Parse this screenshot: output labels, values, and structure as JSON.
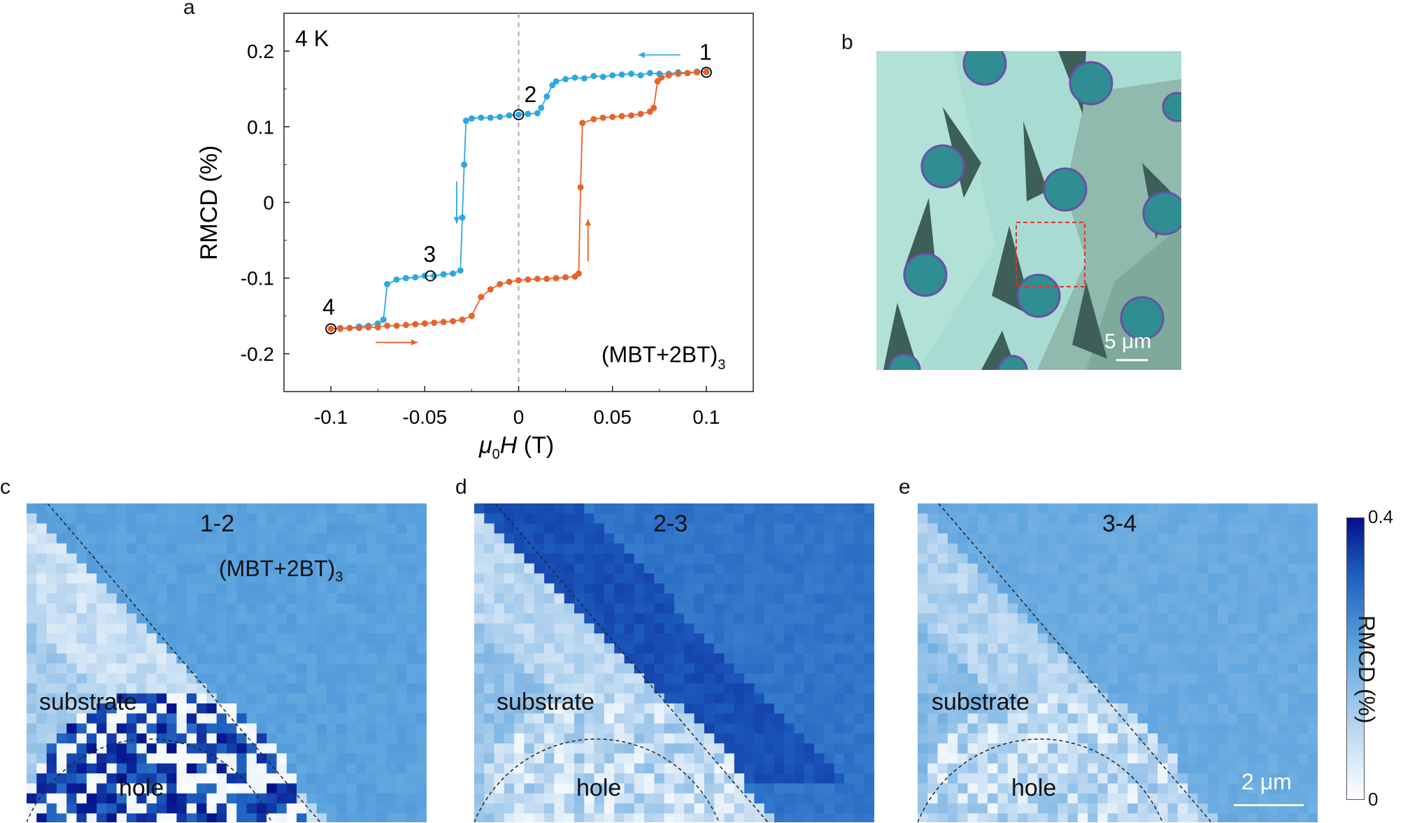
{
  "panel_labels": {
    "a": "a",
    "b": "b",
    "c": "c",
    "d": "d",
    "e": "e"
  },
  "panel_a": {
    "temperature": "4 K",
    "sample": "(MBT+2BT)",
    "sample_subscript": "3",
    "point_labels": [
      "1",
      "2",
      "3",
      "4"
    ],
    "colors": {
      "sweep_down": "#2ea7e0",
      "sweep_up": "#e8622a",
      "dashed_zero": "#aaaaaa"
    }
  },
  "chart_data": {
    "type": "scatter",
    "title": "",
    "xlabel_mu": "μ",
    "xlabel_sub": "0",
    "xlabel_rest": "H (T)",
    "ylabel": "RMCD (%)",
    "xlim": [
      -0.125,
      0.125
    ],
    "ylim": [
      -0.25,
      0.25
    ],
    "x_ticks": [
      "-0.1",
      "-0.05",
      "0",
      "0.05",
      "0.1"
    ],
    "y_ticks": [
      "0.2",
      "0.1",
      "0",
      "-0.1",
      "-0.2"
    ],
    "x_tick_values": [
      -0.1,
      -0.05,
      0,
      0.05,
      0.1
    ],
    "y_tick_values": [
      0.2,
      0.1,
      0,
      -0.1,
      -0.2
    ],
    "series": [
      {
        "color": "#2ea7e0",
        "points": [
          [
            0.1,
            0.172
          ],
          [
            0.095,
            0.173
          ],
          [
            0.09,
            0.171
          ],
          [
            0.085,
            0.172
          ],
          [
            0.08,
            0.17
          ],
          [
            0.075,
            0.17
          ],
          [
            0.07,
            0.171
          ],
          [
            0.065,
            0.168
          ],
          [
            0.06,
            0.17
          ],
          [
            0.055,
            0.169
          ],
          [
            0.05,
            0.168
          ],
          [
            0.045,
            0.166
          ],
          [
            0.04,
            0.167
          ],
          [
            0.035,
            0.164
          ],
          [
            0.03,
            0.165
          ],
          [
            0.025,
            0.163
          ],
          [
            0.02,
            0.16
          ],
          [
            0.018,
            0.155
          ],
          [
            0.015,
            0.14
          ],
          [
            0.012,
            0.125
          ],
          [
            0.01,
            0.118
          ],
          [
            0.005,
            0.117
          ],
          [
            0.0,
            0.116
          ],
          [
            -0.005,
            0.115
          ],
          [
            -0.01,
            0.113
          ],
          [
            -0.015,
            0.112
          ],
          [
            -0.02,
            0.112
          ],
          [
            -0.025,
            0.111
          ],
          [
            -0.028,
            0.108
          ],
          [
            -0.029,
            0.05
          ],
          [
            -0.03,
            -0.02
          ],
          [
            -0.031,
            -0.09
          ],
          [
            -0.035,
            -0.094
          ],
          [
            -0.04,
            -0.095
          ],
          [
            -0.045,
            -0.097
          ],
          [
            -0.05,
            -0.097
          ],
          [
            -0.055,
            -0.099
          ],
          [
            -0.06,
            -0.1
          ],
          [
            -0.065,
            -0.102
          ],
          [
            -0.07,
            -0.108
          ],
          [
            -0.072,
            -0.155
          ],
          [
            -0.075,
            -0.16
          ],
          [
            -0.08,
            -0.163
          ],
          [
            -0.085,
            -0.164
          ],
          [
            -0.09,
            -0.166
          ],
          [
            -0.095,
            -0.166
          ],
          [
            -0.1,
            -0.167
          ]
        ]
      },
      {
        "color": "#e8622a",
        "points": [
          [
            -0.1,
            -0.167
          ],
          [
            -0.095,
            -0.167
          ],
          [
            -0.09,
            -0.166
          ],
          [
            -0.085,
            -0.166
          ],
          [
            -0.08,
            -0.165
          ],
          [
            -0.075,
            -0.165
          ],
          [
            -0.07,
            -0.163
          ],
          [
            -0.065,
            -0.163
          ],
          [
            -0.06,
            -0.162
          ],
          [
            -0.055,
            -0.161
          ],
          [
            -0.05,
            -0.16
          ],
          [
            -0.045,
            -0.159
          ],
          [
            -0.04,
            -0.158
          ],
          [
            -0.035,
            -0.157
          ],
          [
            -0.03,
            -0.155
          ],
          [
            -0.025,
            -0.15
          ],
          [
            -0.02,
            -0.125
          ],
          [
            -0.015,
            -0.115
          ],
          [
            -0.01,
            -0.108
          ],
          [
            -0.005,
            -0.105
          ],
          [
            0.0,
            -0.103
          ],
          [
            0.005,
            -0.102
          ],
          [
            0.01,
            -0.101
          ],
          [
            0.015,
            -0.101
          ],
          [
            0.02,
            -0.1
          ],
          [
            0.025,
            -0.099
          ],
          [
            0.03,
            -0.098
          ],
          [
            0.032,
            -0.094
          ],
          [
            0.033,
            0.02
          ],
          [
            0.034,
            0.105
          ],
          [
            0.04,
            0.11
          ],
          [
            0.045,
            0.112
          ],
          [
            0.05,
            0.113
          ],
          [
            0.055,
            0.114
          ],
          [
            0.06,
            0.115
          ],
          [
            0.065,
            0.117
          ],
          [
            0.07,
            0.12
          ],
          [
            0.072,
            0.125
          ],
          [
            0.074,
            0.16
          ],
          [
            0.076,
            0.165
          ],
          [
            0.08,
            0.168
          ],
          [
            0.085,
            0.17
          ],
          [
            0.09,
            0.171
          ],
          [
            0.095,
            0.172
          ],
          [
            0.1,
            0.173
          ]
        ]
      }
    ],
    "markers": [
      {
        "label": "1",
        "x": 0.1,
        "y": 0.172
      },
      {
        "label": "2",
        "x": 0.0,
        "y": 0.116
      },
      {
        "label": "3",
        "x": -0.047,
        "y": -0.097
      },
      {
        "label": "4",
        "x": -0.1,
        "y": -0.167
      }
    ],
    "arrows": [
      {
        "color": "#2ea7e0",
        "direction": "left",
        "x": 0.075,
        "y": 0.195
      },
      {
        "color": "#2ea7e0",
        "direction": "down",
        "x": -0.033,
        "y": 0.0
      },
      {
        "color": "#e8622a",
        "direction": "up",
        "x": 0.037,
        "y": -0.05
      },
      {
        "color": "#e8622a",
        "direction": "right",
        "x": -0.065,
        "y": -0.185
      }
    ]
  },
  "panel_b": {
    "scale_bar": "5 μm",
    "colors": {
      "background": "#a8dcd2",
      "flake": "#3d5f57",
      "hole": "#2f8e91",
      "hole_rim": "#6a4fa8",
      "roi": "#e0332f"
    }
  },
  "maps": [
    {
      "title": "1-2",
      "sample": "(MBT+2BT)",
      "sample_subscript": "3",
      "substrate": "substrate",
      "hole": "hole"
    },
    {
      "title": "2-3",
      "substrate": "substrate",
      "hole": "hole"
    },
    {
      "title": "3-4",
      "substrate": "substrate",
      "hole": "hole",
      "scale_bar": "2 μm"
    }
  ],
  "colorbar": {
    "max": "0.4",
    "min": "0",
    "title": "RMCD (%)"
  }
}
